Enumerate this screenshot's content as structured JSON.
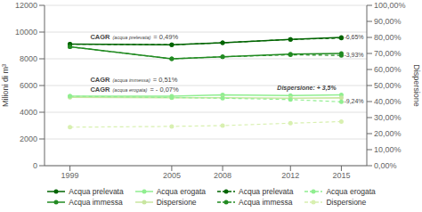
{
  "chart_data": {
    "type": "line",
    "x": [
      1999,
      2005,
      2008,
      2012,
      2015
    ],
    "xlim": [
      1997.5,
      2016.5
    ],
    "xticks": [
      1999,
      2005,
      2008,
      2012,
      2015
    ],
    "ylabel": "Milioni di m³",
    "y2label": "Dispersione",
    "ylim": [
      0,
      12000
    ],
    "yticks": [
      0,
      2000,
      4000,
      6000,
      8000,
      10000,
      12000
    ],
    "y2lim": [
      0,
      1.0
    ],
    "y2ticks": [
      {
        "value": 0.0,
        "label": "0,00%"
      },
      {
        "value": 0.1,
        "label": "10,00%"
      },
      {
        "value": 0.2,
        "label": "20,00%"
      },
      {
        "value": 0.3,
        "label": "30,00%"
      },
      {
        "value": 0.4,
        "label": "40,00%"
      },
      {
        "value": 0.5,
        "label": "50,00%"
      },
      {
        "value": 0.6,
        "label": "60,00%"
      },
      {
        "value": 0.7,
        "label": "70,00%"
      },
      {
        "value": 0.8,
        "label": "80,00%"
      },
      {
        "value": 0.9,
        "label": "90,00%"
      },
      {
        "value": 1.0,
        "label": "100,00%"
      }
    ],
    "grid": "y",
    "legend": "bottom",
    "series": [
      {
        "name": "Acqua prelevata",
        "color": "#006400",
        "line_style": "solid",
        "marker": "circle",
        "values": [
          9100,
          9050,
          9200,
          9450,
          9600
        ]
      },
      {
        "name": "Acqua immessa",
        "color": "#228B22",
        "line_style": "solid",
        "marker": "circle",
        "values": [
          8900,
          8000,
          8150,
          8350,
          8400
        ]
      },
      {
        "name": "Acqua erogata",
        "color": "#90EE90",
        "line_style": "solid",
        "marker": "circle",
        "values": [
          5200,
          5200,
          5300,
          5250,
          5300
        ]
      },
      {
        "name": "Dispersione",
        "color": "#c8e6a0",
        "line_style": "solid",
        "marker": "circle",
        "axis": "y2",
        "values": [
          0.426,
          0.424,
          0.424,
          0.421,
          0.423
        ]
      },
      {
        "name": "Acqua prelevata",
        "color": "#006400",
        "line_style": "dashed",
        "marker": "circle",
        "values": [
          9100,
          9050,
          9200,
          9450,
          9550
        ]
      },
      {
        "name": "Acqua immessa",
        "color": "#228B22",
        "line_style": "dashed",
        "marker": "circle",
        "values": [
          8900,
          8000,
          8150,
          8300,
          8250
        ]
      },
      {
        "name": "Acqua erogata",
        "color": "#90EE90",
        "line_style": "dashed",
        "marker": "circle",
        "values": [
          5200,
          5100,
          5050,
          4950,
          4780
        ]
      },
      {
        "name": "Dispersione",
        "color": "#d8f0b0",
        "line_style": "dashed",
        "marker": "circle",
        "axis": "y2",
        "values": [
          0.24,
          0.245,
          0.25,
          0.265,
          0.275
        ]
      }
    ],
    "annotations": [
      [
        "CAGR",
        "(acqua prelevata)",
        "= 0,49%"
      ],
      [
        "CAGR",
        "(acqua immessa)",
        "= 0,51%"
      ],
      [
        "CAGR",
        "(acqua erogata)",
        "= - 0,07%"
      ],
      [
        "-6,65%"
      ],
      [
        "-3,93%"
      ],
      [
        "Dispersione: + 3,5%"
      ],
      [
        "-9,24%"
      ]
    ]
  }
}
